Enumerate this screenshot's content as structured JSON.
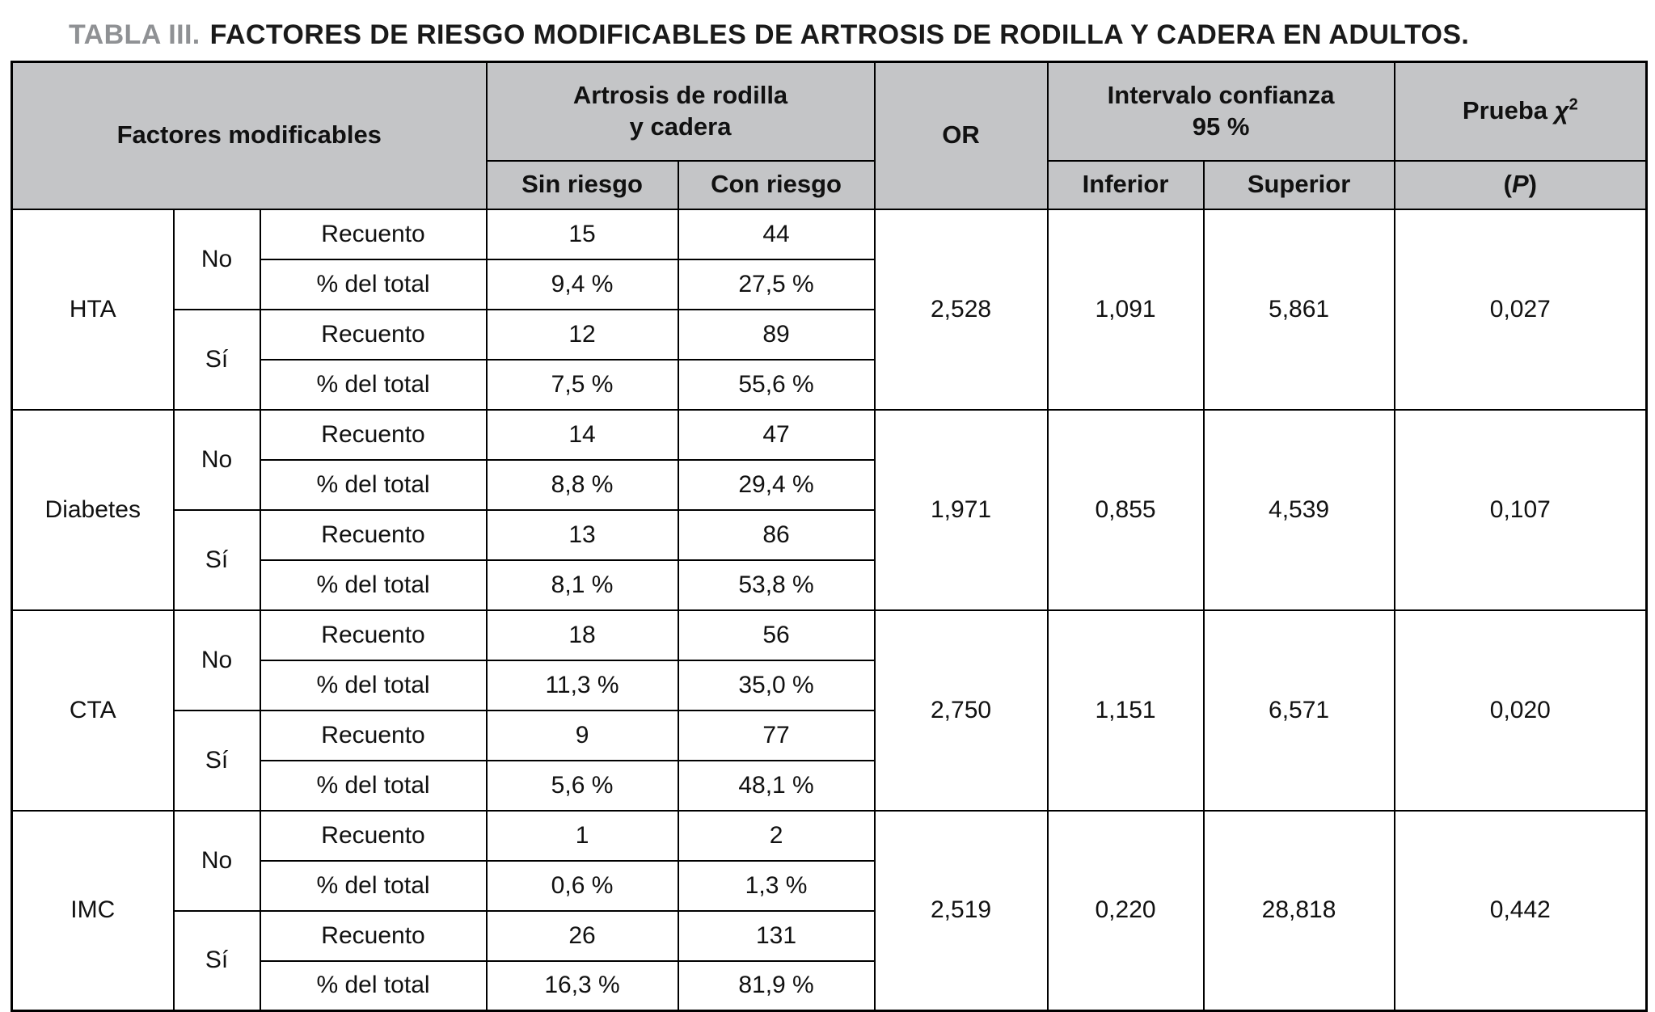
{
  "title": {
    "label": "TABLA III.",
    "text": "FACTORES DE RIESGO MODIFICABLES DE ARTROSIS DE RODILLA Y CADERA EN ADULTOS."
  },
  "header": {
    "factores": "Factores modificables",
    "artrosis_lines": [
      "Artrosis de rodilla",
      "y cadera"
    ],
    "or": "OR",
    "intervalo_lines": [
      "Intervalo confianza",
      "95 %"
    ],
    "prueba": {
      "prefix": "Prueba ",
      "chi": "χ",
      "exp": "2"
    },
    "sin_riesgo": "Sin riesgo",
    "con_riesgo": "Con riesgo",
    "inferior": "Inferior",
    "superior": "Superior",
    "p": {
      "open": "(",
      "letter": "P",
      "close": ")"
    }
  },
  "row_labels": {
    "no": "No",
    "si": "Sí",
    "recuento": "Recuento",
    "pct": "% del total"
  },
  "groups": [
    {
      "factor": "HTA",
      "no": {
        "recuento": [
          "15",
          "44"
        ],
        "pct": [
          "9,4 %",
          "27,5 %"
        ]
      },
      "si": {
        "recuento": [
          "12",
          "89"
        ],
        "pct": [
          "7,5 %",
          "55,6 %"
        ]
      },
      "or": "2,528",
      "inferior": "1,091",
      "superior": "5,861",
      "p": "0,027"
    },
    {
      "factor": "Diabetes",
      "no": {
        "recuento": [
          "14",
          "47"
        ],
        "pct": [
          "8,8 %",
          "29,4 %"
        ]
      },
      "si": {
        "recuento": [
          "13",
          "86"
        ],
        "pct": [
          "8,1 %",
          "53,8 %"
        ]
      },
      "or": "1,971",
      "inferior": "0,855",
      "superior": "4,539",
      "p": "0,107"
    },
    {
      "factor": "CTA",
      "no": {
        "recuento": [
          "18",
          "56"
        ],
        "pct": [
          "11,3 %",
          "35,0 %"
        ]
      },
      "si": {
        "recuento": [
          "9",
          "77"
        ],
        "pct": [
          "5,6 %",
          "48,1 %"
        ]
      },
      "or": "2,750",
      "inferior": "1,151",
      "superior": "6,571",
      "p": "0,020"
    },
    {
      "factor": "IMC",
      "no": {
        "recuento": [
          "1",
          "2"
        ],
        "pct": [
          "0,6 %",
          "1,3 %"
        ]
      },
      "si": {
        "recuento": [
          "26",
          "131"
        ],
        "pct": [
          "16,3 %",
          "81,9 %"
        ]
      },
      "or": "2,519",
      "inferior": "0,220",
      "superior": "28,818",
      "p": "0,442"
    }
  ]
}
